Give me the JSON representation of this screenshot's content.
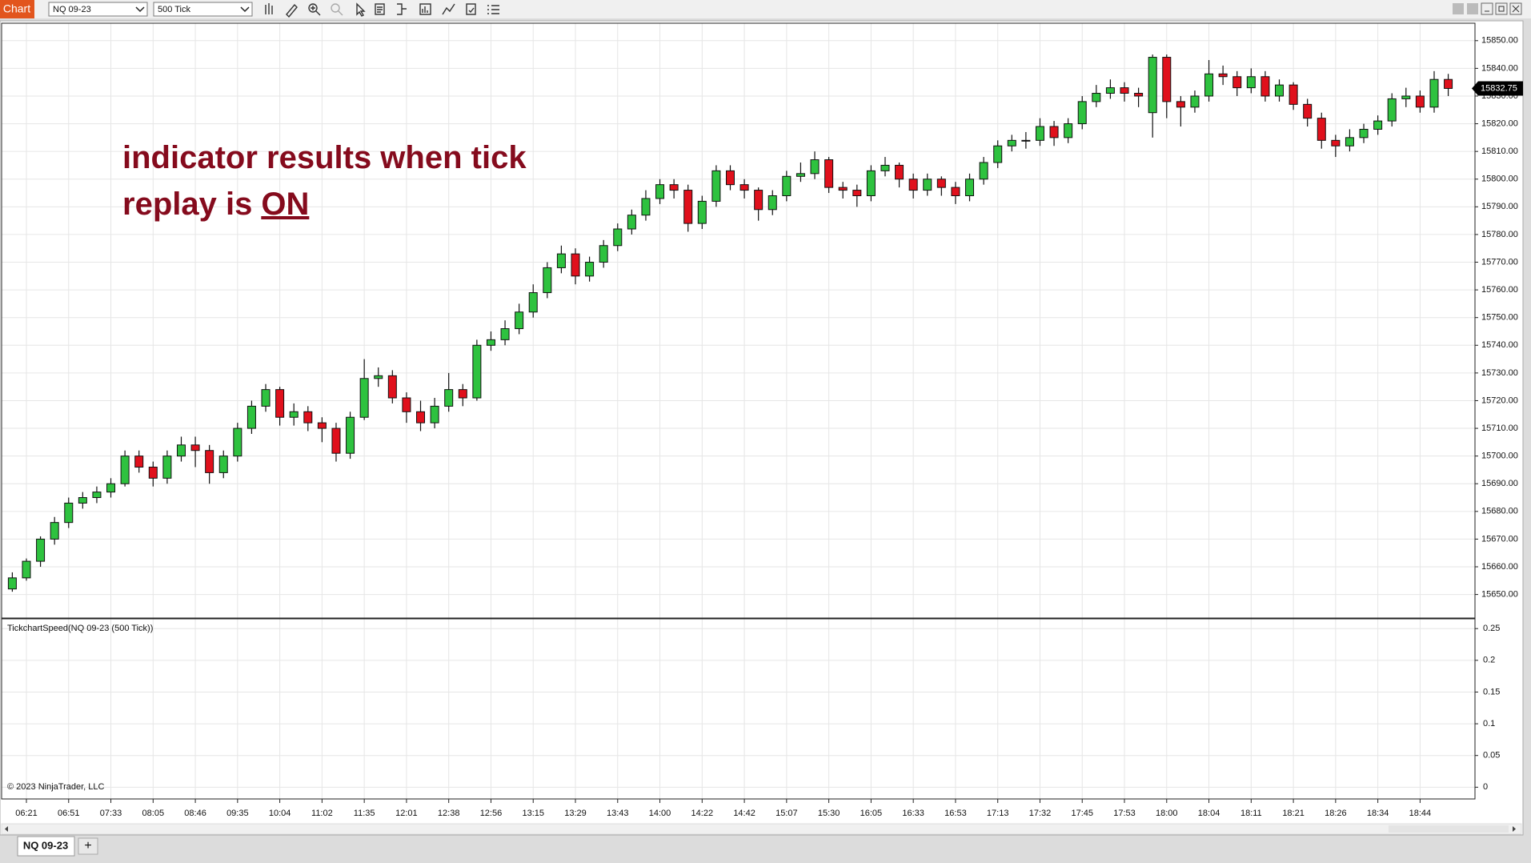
{
  "toolbar": {
    "app_label": "Chart",
    "instrument": "NQ 09-23",
    "interval": "500 Tick"
  },
  "chart_data": [
    {
      "type": "candlestick",
      "annotation": {
        "line1": "indicator results when tick",
        "line2": "replay is",
        "emphasis": "ON"
      },
      "up_color": "#2ec23f",
      "down_color": "#e0101c",
      "grid": true,
      "ylim": [
        15641.5,
        15856.3
      ],
      "yticks": [
        {
          "value": 15650,
          "label": "15650.00"
        },
        {
          "value": 15660,
          "label": "15660.00"
        },
        {
          "value": 15670,
          "label": "15670.00"
        },
        {
          "value": 15680,
          "label": "15680.00"
        },
        {
          "value": 15690,
          "label": "15690.00"
        },
        {
          "value": 15700,
          "label": "15700.00"
        },
        {
          "value": 15710,
          "label": "15710.00"
        },
        {
          "value": 15720,
          "label": "15720.00"
        },
        {
          "value": 15730,
          "label": "15730.00"
        },
        {
          "value": 15740,
          "label": "15740.00"
        },
        {
          "value": 15750,
          "label": "15750.00"
        },
        {
          "value": 15760,
          "label": "15760.00"
        },
        {
          "value": 15770,
          "label": "15770.00"
        },
        {
          "value": 15780,
          "label": "15780.00"
        },
        {
          "value": 15790,
          "label": "15790.00"
        },
        {
          "value": 15800,
          "label": "15800.00"
        },
        {
          "value": 15810,
          "label": "15810.00"
        },
        {
          "value": 15820,
          "label": "15820.00"
        },
        {
          "value": 15830,
          "label": "15830.00"
        },
        {
          "value": 15840,
          "label": "15840.00"
        },
        {
          "value": 15850,
          "label": "15850.00"
        }
      ],
      "time_labels": [
        "06:21",
        "06:51",
        "07:33",
        "08:05",
        "08:46",
        "09:35",
        "10:04",
        "11:02",
        "11:35",
        "12:01",
        "12:38",
        "12:56",
        "13:15",
        "13:29",
        "13:43",
        "14:00",
        "14:22",
        "14:42",
        "15:07",
        "15:30",
        "16:05",
        "16:33",
        "16:53",
        "17:13",
        "17:32",
        "17:45",
        "17:53",
        "18:00",
        "18:04",
        "18:11",
        "18:21",
        "18:26",
        "18:34",
        "18:44"
      ],
      "ohlc": [
        [
          15652,
          15658,
          15651,
          15656
        ],
        [
          15656,
          15663,
          15655,
          15662
        ],
        [
          15662,
          15671,
          15660,
          15670
        ],
        [
          15670,
          15678,
          15668,
          15676
        ],
        [
          15676,
          15685,
          15674,
          15683
        ],
        [
          15683,
          15687,
          15681,
          15685
        ],
        [
          15685,
          15689,
          15683,
          15687
        ],
        [
          15687,
          15692,
          15685,
          15690
        ],
        [
          15690,
          15702,
          15689,
          15700
        ],
        [
          15700,
          15702,
          15694,
          15696
        ],
        [
          15696,
          15698,
          15689,
          15692
        ],
        [
          15692,
          15702,
          15690,
          15700
        ],
        [
          15700,
          15707,
          15698,
          15704
        ],
        [
          15704,
          15707,
          15696,
          15702
        ],
        [
          15702,
          15704,
          15690,
          15694
        ],
        [
          15694,
          15702,
          15692,
          15700
        ],
        [
          15700,
          15712,
          15698,
          15710
        ],
        [
          15710,
          15720,
          15708,
          15718
        ],
        [
          15718,
          15726,
          15716,
          15724
        ],
        [
          15724,
          15725,
          15711,
          15714
        ],
        [
          15714,
          15719,
          15711,
          15716
        ],
        [
          15716,
          15718,
          15709,
          15712
        ],
        [
          15712,
          15714,
          15705,
          15710
        ],
        [
          15710,
          15712,
          15698,
          15701
        ],
        [
          15701,
          15716,
          15699,
          15714
        ],
        [
          15714,
          15735,
          15713,
          15728
        ],
        [
          15728,
          15732,
          15725,
          15729
        ],
        [
          15729,
          15731,
          15719,
          15721
        ],
        [
          15721,
          15723,
          15712,
          15716
        ],
        [
          15716,
          15720,
          15709,
          15712
        ],
        [
          15712,
          15721,
          15710,
          15718
        ],
        [
          15718,
          15730,
          15716,
          15724
        ],
        [
          15724,
          15726,
          15718,
          15721
        ],
        [
          15721,
          15742,
          15720,
          15740
        ],
        [
          15740,
          15745,
          15738,
          15742
        ],
        [
          15742,
          15749,
          15740,
          15746
        ],
        [
          15746,
          15755,
          15744,
          15752
        ],
        [
          15752,
          15762,
          15750,
          15759
        ],
        [
          15759,
          15770,
          15757,
          15768
        ],
        [
          15768,
          15776,
          15766,
          15773
        ],
        [
          15773,
          15775,
          15762,
          15765
        ],
        [
          15765,
          15772,
          15763,
          15770
        ],
        [
          15770,
          15778,
          15768,
          15776
        ],
        [
          15776,
          15784,
          15774,
          15782
        ],
        [
          15782,
          15789,
          15780,
          15787
        ],
        [
          15787,
          15796,
          15785,
          15793
        ],
        [
          15793,
          15800,
          15791,
          15798
        ],
        [
          15798,
          15800,
          15793,
          15796
        ],
        [
          15796,
          15798,
          15781,
          15784
        ],
        [
          15784,
          15794,
          15782,
          15792
        ],
        [
          15792,
          15805,
          15790,
          15803
        ],
        [
          15803,
          15805,
          15796,
          15798
        ],
        [
          15798,
          15800,
          15793,
          15796
        ],
        [
          15796,
          15797,
          15785,
          15789
        ],
        [
          15789,
          15796,
          15787,
          15794
        ],
        [
          15794,
          15803,
          15792,
          15801
        ],
        [
          15801,
          15806,
          15799,
          15802
        ],
        [
          15802,
          15810,
          15800,
          15807
        ],
        [
          15807,
          15808,
          15795,
          15797
        ],
        [
          15797,
          15799,
          15793,
          15796
        ],
        [
          15796,
          15798,
          15790,
          15794
        ],
        [
          15794,
          15805,
          15792,
          15803
        ],
        [
          15803,
          15808,
          15801,
          15805
        ],
        [
          15805,
          15806,
          15797,
          15800
        ],
        [
          15800,
          15802,
          15793,
          15796
        ],
        [
          15796,
          15802,
          15794,
          15800
        ],
        [
          15800,
          15801,
          15794,
          15797
        ],
        [
          15797,
          15799,
          15791,
          15794
        ],
        [
          15794,
          15802,
          15792,
          15800
        ],
        [
          15800,
          15808,
          15798,
          15806
        ],
        [
          15806,
          15814,
          15804,
          15812
        ],
        [
          15812,
          15816,
          15810,
          15814
        ],
        [
          15814,
          15817,
          15811,
          15814
        ],
        [
          15814,
          15822,
          15812,
          15819
        ],
        [
          15819,
          15821,
          15812,
          15815
        ],
        [
          15815,
          15822,
          15813,
          15820
        ],
        [
          15820,
          15830,
          15818,
          15828
        ],
        [
          15828,
          15834,
          15826,
          15831
        ],
        [
          15831,
          15836,
          15829,
          15833
        ],
        [
          15833,
          15835,
          15828,
          15831
        ],
        [
          15831,
          15833,
          15826,
          15830
        ],
        [
          15824,
          15845,
          15815,
          15844
        ],
        [
          15844,
          15845,
          15822,
          15828
        ],
        [
          15828,
          15830,
          15819,
          15826
        ],
        [
          15826,
          15832,
          15824,
          15830
        ],
        [
          15830,
          15843,
          15828,
          15838
        ],
        [
          15838,
          15841,
          15834,
          15837
        ],
        [
          15837,
          15839,
          15830,
          15833
        ],
        [
          15833,
          15840,
          15831,
          15837
        ],
        [
          15837,
          15839,
          15828,
          15830
        ],
        [
          15830,
          15836,
          15828,
          15834
        ],
        [
          15834,
          15835,
          15825,
          15827
        ],
        [
          15827,
          15829,
          15819,
          15822
        ],
        [
          15822,
          15824,
          15811,
          15814
        ],
        [
          15814,
          15816,
          15808,
          15812
        ],
        [
          15812,
          15818,
          15810,
          15815
        ],
        [
          15815,
          15820,
          15813,
          15818
        ],
        [
          15818,
          15823,
          15816,
          15821
        ],
        [
          15821,
          15831,
          15819,
          15829
        ],
        [
          15829,
          15833,
          15826,
          15830
        ],
        [
          15830,
          15832,
          15824,
          15826
        ],
        [
          15826,
          15839,
          15824,
          15836
        ],
        [
          15836,
          15838,
          15830,
          15832.75
        ]
      ]
    },
    {
      "type": "indicator",
      "title": "TickchartSpeed(NQ 09-23 (500 Tick))",
      "grid": true,
      "ylim": [
        -0.0185,
        0.2654
      ],
      "yticks": [
        0.25,
        0.2,
        0.15,
        0.1,
        0.05,
        0
      ]
    }
  ],
  "copyright": "© 2023 NinjaTrader, LLC",
  "tabs": [
    "NQ 09-23"
  ],
  "add_tab": "+"
}
